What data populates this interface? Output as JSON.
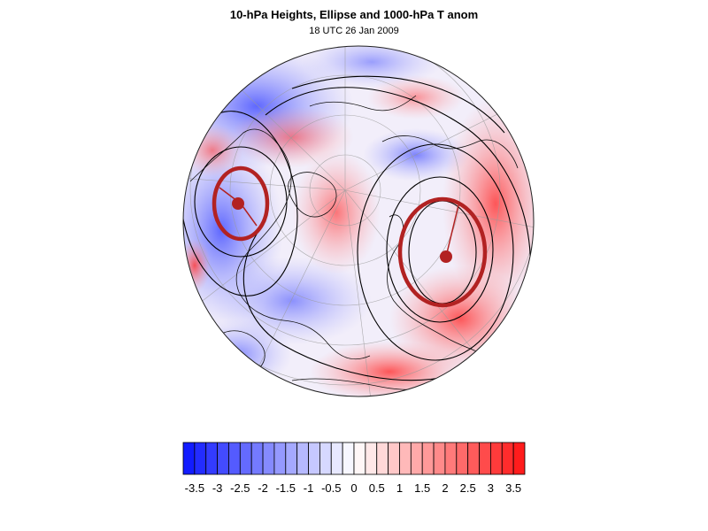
{
  "title": "10-hPa Heights, Ellipse and 1000-hPa T anom",
  "subtitle": "18 UTC 26 Jan 2009",
  "colorbar": {
    "levels": [
      -3.75,
      -3.5,
      -3.25,
      -3,
      -2.75,
      -2.5,
      -2.25,
      -2,
      -1.75,
      -1.5,
      -1.25,
      -1,
      -0.75,
      -0.5,
      -0.25,
      0,
      0.25,
      0.5,
      0.75,
      1,
      1.25,
      1.5,
      1.75,
      2,
      2.25,
      2.5,
      2.75,
      3,
      3.25,
      3.5,
      3.75
    ],
    "tick_labels": [
      "-3.5",
      "-3",
      "-2.5",
      "-2",
      "-1.5",
      "-1",
      "-0.5",
      "0",
      "0.5",
      "1",
      "1.5",
      "2",
      "2.5",
      "3",
      "3.5"
    ],
    "colors": {
      "cold": "#0a14ff",
      "neutral": "#ffffff",
      "warm": "#ff1414"
    }
  },
  "vortex_ellipses": [
    {
      "name": "western vortex",
      "color": "#b22222"
    },
    {
      "name": "eastern vortex",
      "color": "#b22222"
    }
  ]
}
